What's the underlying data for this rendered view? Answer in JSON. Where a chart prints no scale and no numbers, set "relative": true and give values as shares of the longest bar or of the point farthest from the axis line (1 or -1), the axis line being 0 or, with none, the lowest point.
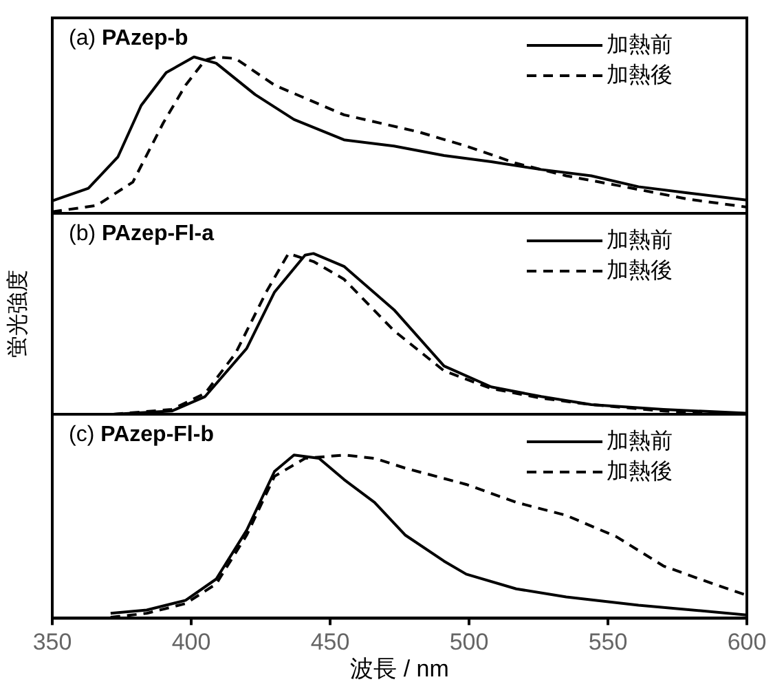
{
  "chart_data": [
    {
      "type": "line",
      "title": "(a) PAzep-b",
      "relative": true,
      "xlim": [
        350,
        600
      ],
      "xticks": [
        350,
        400,
        450,
        500,
        550,
        600
      ],
      "tick_labels": false,
      "legend": "top right",
      "marker": "none",
      "series": [
        {
          "name": "加熱前",
          "color": "#000000",
          "line_style": "solid",
          "x": [
            350,
            363,
            373.6,
            382,
            391,
            401,
            409,
            423,
            437,
            455,
            473,
            491,
            508,
            526,
            544,
            561,
            579,
            600
          ],
          "values": [
            0.08,
            0.16,
            0.36,
            0.69,
            0.9,
            1.0,
            0.96,
            0.76,
            0.6,
            0.47,
            0.43,
            0.37,
            0.33,
            0.28,
            0.24,
            0.17,
            0.13,
            0.085
          ]
        },
        {
          "name": "加熱後",
          "color": "#000000",
          "line_style": "dashed",
          "x": [
            350,
            366,
            379,
            390,
            398,
            405,
            409,
            416,
            430,
            455,
            482,
            499,
            517,
            535,
            553,
            579,
            600
          ],
          "values": [
            0.01,
            0.05,
            0.2,
            0.58,
            0.82,
            0.98,
            1.0,
            0.99,
            0.82,
            0.63,
            0.52,
            0.43,
            0.32,
            0.24,
            0.18,
            0.09,
            0.04
          ]
        }
      ]
    },
    {
      "type": "line",
      "title": "(b) PAzep-Fl-a",
      "ylabel": "蛍光強度",
      "relative": true,
      "xlim": [
        350,
        600
      ],
      "xticks": [
        350,
        400,
        450,
        500,
        550,
        600
      ],
      "tick_labels": false,
      "legend": "top right",
      "marker": "none",
      "series": [
        {
          "name": "加熱前",
          "color": "#000000",
          "line_style": "solid",
          "x": [
            372,
            393,
            405,
            420,
            430,
            441,
            444,
            455,
            473,
            491,
            508,
            526,
            544,
            570,
            600
          ],
          "values": [
            0,
            0.02,
            0.11,
            0.41,
            0.76,
            0.99,
            1.0,
            0.92,
            0.65,
            0.3,
            0.17,
            0.11,
            0.06,
            0.03,
            0.006
          ]
        },
        {
          "name": "加熱後",
          "color": "#000000",
          "line_style": "dashed",
          "x": [
            372,
            393,
            405,
            416,
            427,
            435,
            444,
            455,
            473,
            491,
            508,
            526,
            544,
            570,
            600
          ],
          "values": [
            0,
            0.03,
            0.13,
            0.38,
            0.76,
            1.0,
            0.95,
            0.84,
            0.52,
            0.27,
            0.16,
            0.1,
            0.06,
            0.02,
            0
          ]
        }
      ]
    },
    {
      "type": "line",
      "title": "(c) PAzep-Fl-b",
      "xlabel": "波長 / nm",
      "relative": true,
      "xlim": [
        350,
        600
      ],
      "xticks": [
        350,
        400,
        450,
        500,
        550,
        600
      ],
      "tick_labels": "x",
      "legend": "top right",
      "marker": "none",
      "series": [
        {
          "name": "加熱前",
          "color": "#000000",
          "line_style": "solid",
          "x": [
            371,
            384,
            398,
            409,
            420,
            430,
            437,
            446,
            455,
            466,
            477,
            491,
            499,
            517,
            535,
            561,
            600
          ],
          "values": [
            0.03,
            0.05,
            0.11,
            0.24,
            0.54,
            0.9,
            1.0,
            0.98,
            0.85,
            0.71,
            0.51,
            0.35,
            0.27,
            0.18,
            0.13,
            0.08,
            0.02
          ]
        },
        {
          "name": "加熱後",
          "color": "#000000",
          "line_style": "dashed",
          "x": [
            371,
            384,
            398,
            409,
            420,
            430,
            441,
            455,
            466,
            477,
            499,
            517,
            535,
            553,
            570,
            588,
            600
          ],
          "values": [
            0.006,
            0.03,
            0.09,
            0.21,
            0.51,
            0.87,
            0.98,
            1.0,
            0.98,
            0.92,
            0.82,
            0.71,
            0.63,
            0.5,
            0.32,
            0.21,
            0.14
          ]
        }
      ]
    }
  ]
}
